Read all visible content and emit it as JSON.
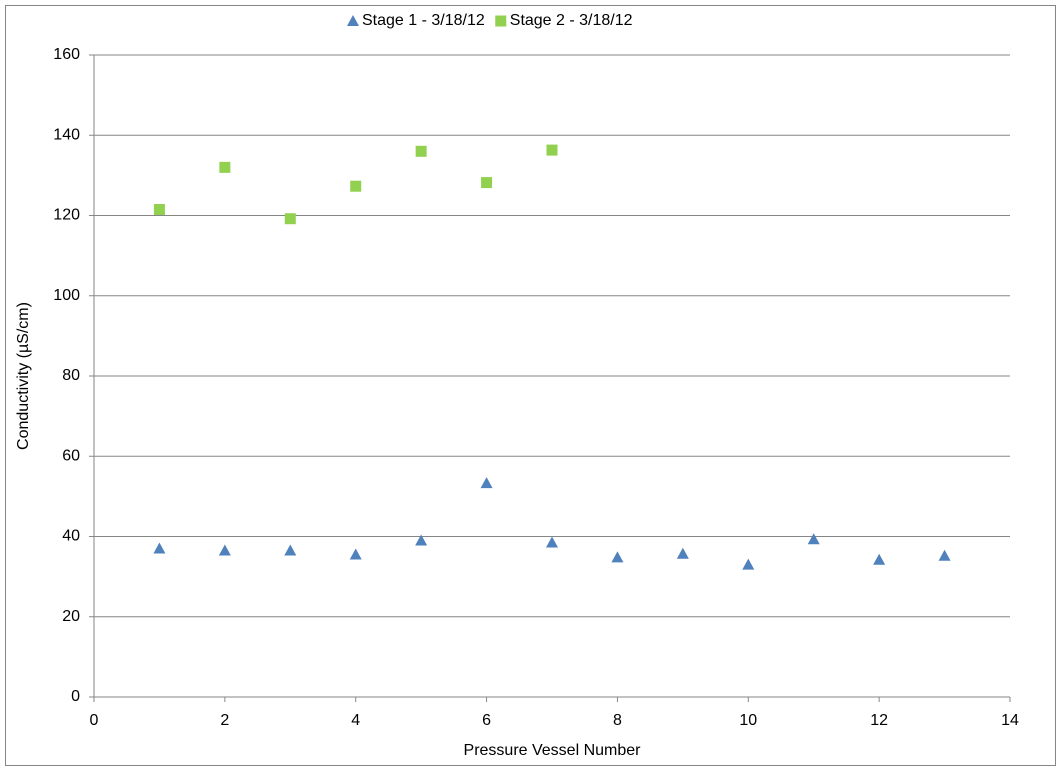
{
  "chart_data": {
    "type": "scatter",
    "x_label": "Pressure Vessel Number",
    "y_label": "Conductivity (µS/cm)",
    "legend": "top",
    "grid": true,
    "xlim": [
      0,
      14
    ],
    "xticks": [
      0,
      2,
      4,
      6,
      8,
      10,
      12,
      14
    ],
    "ylim": [
      0,
      160
    ],
    "yticks": [
      0,
      20,
      40,
      60,
      80,
      100,
      120,
      140,
      160
    ],
    "series": [
      {
        "name": "Stage 1 - 3/18/12",
        "color": "#4f81bd",
        "marker": "triangle",
        "x": [
          1,
          2,
          3,
          4,
          5,
          6,
          7,
          8,
          9,
          10,
          11,
          12,
          13
        ],
        "values": [
          37,
          36.5,
          36.5,
          35.5,
          39,
          53.3,
          38.5,
          34.8,
          35.7,
          33,
          39.3,
          34.2,
          35.2
        ]
      },
      {
        "name": "Stage 2 - 3/18/12",
        "color": "#92d050",
        "marker": "square",
        "x": [
          1,
          2,
          3,
          4,
          5,
          6,
          7
        ],
        "values": [
          121.5,
          132,
          119.2,
          127.3,
          136,
          128.2,
          136.3
        ]
      }
    ]
  }
}
